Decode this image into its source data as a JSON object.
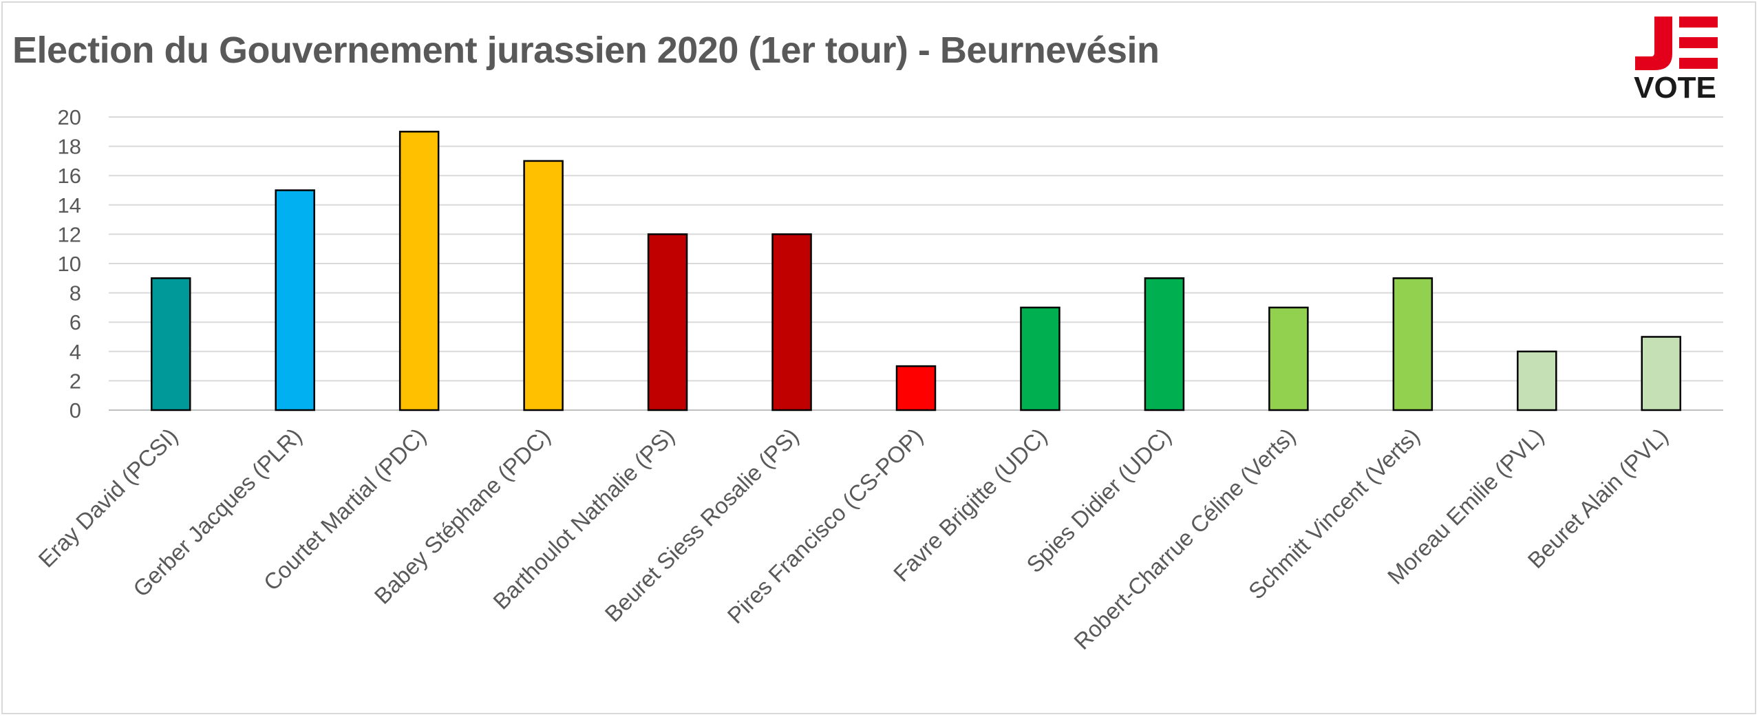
{
  "page": {
    "title": "Election du Gouvernement jurassien 2020 (1er tour) - Beurnevésin"
  },
  "logo": {
    "letter": "J",
    "text": "VOTE",
    "icon": "je-vote-logo",
    "colors": {
      "red": "#e3001b",
      "dark": "#1a1a1a"
    }
  },
  "chart_data": {
    "type": "bar",
    "title": "Election du Gouvernement jurassien 2020 (1er tour) - Beurnevésin",
    "xlabel": "",
    "ylabel": "",
    "ylim": [
      0,
      20
    ],
    "yticks": [
      0,
      2,
      4,
      6,
      8,
      10,
      12,
      14,
      16,
      18,
      20
    ],
    "grid": true,
    "legend": "none",
    "categories": [
      "Eray David (PCSI)",
      "Gerber Jacques (PLR)",
      "Courtet Martial (PDC)",
      "Babey Stéphane (PDC)",
      "Barthoulot Nathalie (PS)",
      "Beuret Siess Rosalie (PS)",
      "Pires Francisco (CS-POP)",
      "Favre Brigitte (UDC)",
      "Spies Didier (UDC)",
      "Robert-Charrue Céline (Verts)",
      "Schmitt Vincent (Verts)",
      "Moreau Emilie (PVL)",
      "Beuret Alain (PVL)"
    ],
    "values": [
      9,
      15,
      19,
      17,
      12,
      12,
      3,
      7,
      9,
      7,
      9,
      4,
      5
    ],
    "colors": [
      "#009999",
      "#00b0f0",
      "#ffc000",
      "#ffc000",
      "#c00000",
      "#c00000",
      "#ff0000",
      "#00b050",
      "#00b050",
      "#92d050",
      "#92d050",
      "#c5e0b4",
      "#c5e0b4"
    ]
  }
}
